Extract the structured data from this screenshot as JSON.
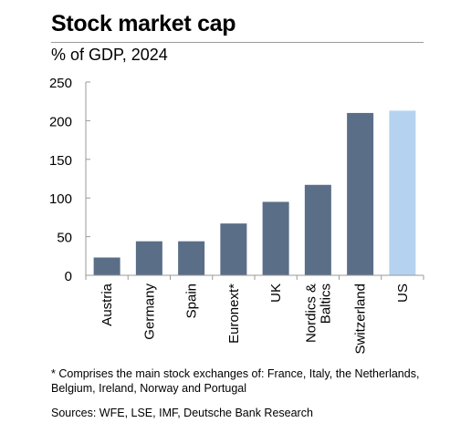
{
  "header": {
    "title": "Stock market cap",
    "subtitle": "% of GDP, 2024"
  },
  "footer": {
    "note": "* Comprises the main stock exchanges of: France, Italy, the Netherlands, Belgium, Ireland, Norway and Portugal",
    "source": "Sources: WFE, LSE, IMF, Deutsche Bank Research"
  },
  "chart_data": {
    "type": "bar",
    "title": "Stock market cap",
    "subtitle": "% of GDP, 2024",
    "categories": [
      "Austria",
      "Germany",
      "Spain",
      "Euronext*",
      "UK",
      "Nordics & Baltics",
      "Switzerland",
      "US"
    ],
    "category_lines": [
      [
        "Austria"
      ],
      [
        "Germany"
      ],
      [
        "Spain"
      ],
      [
        "Euronext*"
      ],
      [
        "UK"
      ],
      [
        "Nordics &",
        "Baltics"
      ],
      [
        "Switzerland"
      ],
      [
        "US"
      ]
    ],
    "values": [
      23,
      44,
      44,
      67,
      95,
      117,
      210,
      213
    ],
    "bar_colors": [
      "#5a6e87",
      "#5a6e87",
      "#5a6e87",
      "#5a6e87",
      "#5a6e87",
      "#5a6e87",
      "#5a6e87",
      "#b5d3f1"
    ],
    "ylim": [
      0,
      250
    ],
    "yticks": [
      0,
      50,
      100,
      150,
      200,
      250
    ],
    "xlabel": "",
    "ylabel": "",
    "grid": false,
    "legend": "none"
  }
}
